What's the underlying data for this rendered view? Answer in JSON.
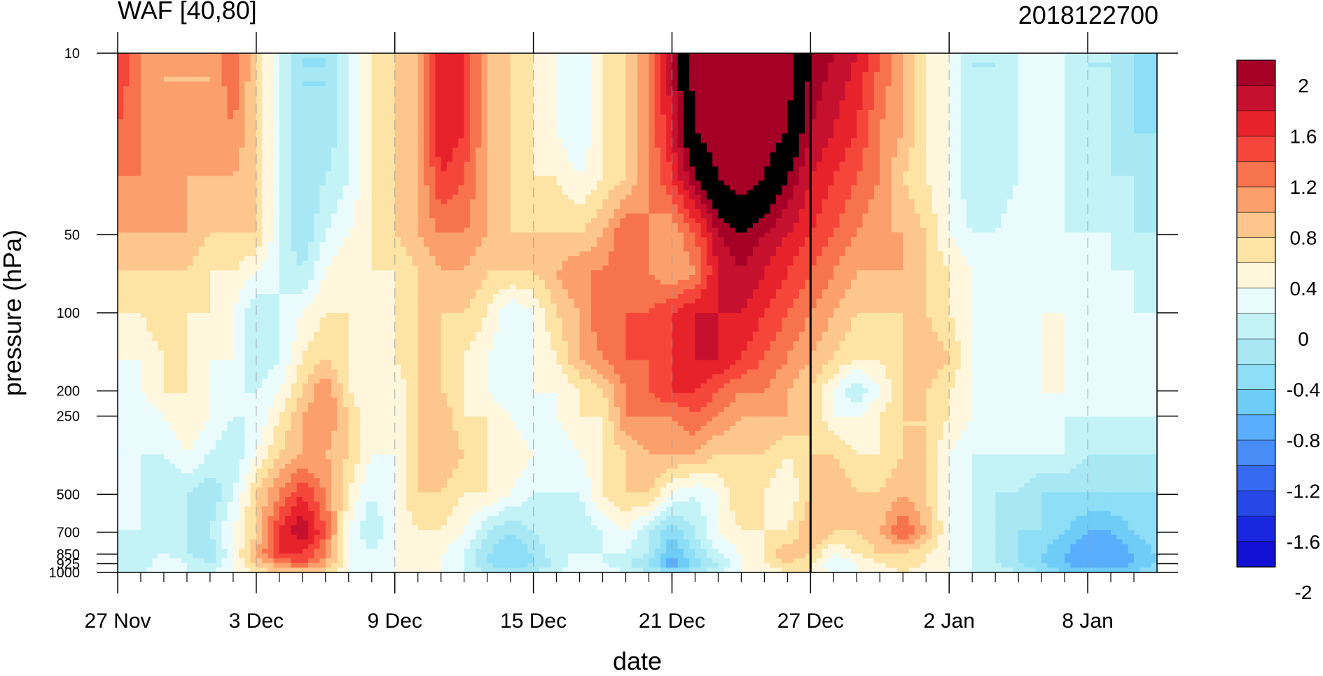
{
  "chart_data": {
    "type": "heatmap",
    "subtype": "filled-contour time-pressure cross section",
    "title_left": "WAF [40,80]",
    "title_right": "2018122700",
    "xlabel": "date",
    "ylabel": "pressure (hPa)",
    "x_axis": {
      "type": "date",
      "start": "2018-11-27",
      "end": "2019-01-11",
      "major_ticks": [
        "2018-11-27",
        "2018-12-03",
        "2018-12-09",
        "2018-12-15",
        "2018-12-21",
        "2018-12-27",
        "2019-01-02",
        "2019-01-08"
      ],
      "tick_labels": [
        "27 Nov",
        "3 Dec",
        "9 Dec",
        "15 Dec",
        "21 Dec",
        "27 Dec",
        "2 Jan",
        "8 Jan"
      ],
      "minor_tick_step_days": 1
    },
    "y_axis": {
      "scale": "log",
      "reversed": true,
      "range": [
        1000,
        10
      ],
      "ticks": [
        10,
        50,
        100,
        200,
        250,
        500,
        700,
        850,
        925,
        1000
      ],
      "tick_labels": [
        "10",
        "50",
        "100",
        "200",
        "250",
        "500",
        "700",
        "850",
        "925",
        "1000"
      ]
    },
    "forecast_start_line": "2018-12-27",
    "grid": "dashed vertical lines at major date ticks",
    "colorbar": {
      "placement": "right",
      "levels": [
        -2.2,
        -2,
        -1.8,
        -1.6,
        -1.4,
        -1.2,
        -1,
        -0.8,
        -0.6,
        -0.4,
        -0.2,
        0,
        0.2,
        0.4,
        0.6,
        0.8,
        1,
        1.2,
        1.4,
        1.6,
        1.8,
        2,
        2.2
      ],
      "labels": [
        "2",
        "1.6",
        "1.2",
        "0.8",
        "0.4",
        "0",
        "-0.4",
        "-0.8",
        "-1.2",
        "-1.6",
        "-2"
      ],
      "colors": [
        "#a50026",
        "#c6102f",
        "#e8222b",
        "#f6463b",
        "#f7734e",
        "#fba06d",
        "#fcc68c",
        "#fde3a4",
        "#fff7dd",
        "#e9fbfd",
        "#c4f3f7",
        "#a8e8f5",
        "#8ddef6",
        "#6fccf7",
        "#5aaefc",
        "#488cf5",
        "#3569ef",
        "#2548e7",
        "#1a27e0",
        "#1210d3"
      ]
    },
    "series": [
      {
        "p": 10,
        "values": [
          1.2,
          0.8,
          0.6,
          0.6,
          0.6,
          1.0,
          0.4,
          -0.2,
          -0.6,
          -0.6,
          -0.2,
          0.2,
          0.4,
          0.6,
          1.4,
          1.2,
          0.6,
          0.4,
          0.2,
          0.0,
          -0.2,
          0.2,
          0.4,
          0.8,
          1.6,
          2.4,
          2.4,
          2.4,
          2.4,
          2.4,
          1.8,
          1.6,
          1.4,
          1.0,
          0.6,
          0.2,
          0.0,
          -0.4,
          -0.4,
          -0.2,
          0.0,
          -0.2,
          -0.4,
          -0.4,
          -0.6,
          -0.8
        ]
      },
      {
        "p": 20,
        "values": [
          1.0,
          0.8,
          0.6,
          0.6,
          0.6,
          0.8,
          0.4,
          -0.2,
          -0.6,
          -0.6,
          -0.2,
          0.2,
          0.4,
          0.6,
          1.4,
          1.2,
          0.6,
          0.4,
          0.2,
          0.0,
          -0.2,
          0.2,
          0.4,
          0.8,
          1.4,
          2.2,
          2.4,
          2.4,
          2.4,
          2.2,
          1.6,
          1.4,
          1.2,
          0.8,
          0.6,
          0.2,
          0.0,
          -0.4,
          -0.4,
          -0.2,
          0.0,
          -0.2,
          -0.4,
          -0.4,
          -0.6,
          -0.6
        ]
      },
      {
        "p": 30,
        "values": [
          0.8,
          0.8,
          0.6,
          0.6,
          0.6,
          0.6,
          0.4,
          -0.2,
          -0.6,
          -0.4,
          -0.2,
          0.2,
          0.4,
          0.6,
          1.2,
          1.0,
          0.6,
          0.4,
          0.2,
          0.2,
          0.0,
          0.2,
          0.4,
          0.8,
          1.2,
          1.8,
          2.2,
          2.4,
          2.2,
          1.8,
          1.4,
          1.2,
          1.0,
          0.8,
          0.4,
          0.2,
          0.0,
          -0.4,
          -0.4,
          -0.2,
          0.0,
          -0.2,
          -0.4,
          -0.4,
          -0.4,
          -0.6
        ]
      },
      {
        "p": 50,
        "values": [
          0.6,
          0.6,
          0.6,
          0.6,
          0.4,
          0.4,
          0.4,
          -0.2,
          -0.6,
          -0.2,
          0.0,
          0.2,
          0.4,
          0.6,
          0.8,
          0.8,
          0.6,
          0.4,
          0.4,
          0.4,
          0.4,
          0.6,
          1.0,
          0.8,
          0.6,
          1.0,
          1.6,
          1.8,
          1.6,
          1.4,
          1.2,
          1.0,
          0.8,
          0.6,
          0.6,
          0.4,
          0.0,
          -0.2,
          -0.2,
          0.0,
          0.0,
          -0.2,
          -0.2,
          -0.2,
          -0.4,
          -0.4
        ]
      },
      {
        "p": 70,
        "values": [
          0.4,
          0.4,
          0.4,
          0.4,
          0.2,
          0.2,
          0.0,
          -0.2,
          -0.4,
          0.0,
          0.2,
          0.2,
          0.2,
          0.4,
          0.6,
          0.6,
          0.4,
          0.4,
          0.4,
          0.6,
          0.8,
          0.8,
          1.0,
          0.8,
          0.6,
          0.8,
          1.4,
          1.6,
          1.4,
          1.2,
          1.0,
          0.8,
          0.6,
          0.6,
          0.6,
          0.4,
          0.2,
          0.0,
          -0.2,
          -0.2,
          0.0,
          -0.2,
          -0.2,
          -0.2,
          -0.2,
          -0.4
        ]
      },
      {
        "p": 100,
        "values": [
          0.2,
          0.2,
          0.4,
          0.2,
          0.2,
          0.0,
          -0.4,
          -0.2,
          0.0,
          0.2,
          0.2,
          0.0,
          0.2,
          0.4,
          0.4,
          0.4,
          0.2,
          -0.2,
          0.0,
          0.4,
          0.6,
          1.0,
          1.0,
          1.0,
          1.2,
          1.4,
          1.4,
          1.4,
          1.2,
          1.0,
          0.8,
          0.6,
          0.4,
          0.4,
          0.4,
          0.4,
          0.2,
          0.0,
          -0.2,
          -0.2,
          0.0,
          0.0,
          -0.2,
          -0.2,
          -0.2,
          -0.2
        ]
      },
      {
        "p": 150,
        "values": [
          0.0,
          0.0,
          0.2,
          0.2,
          0.0,
          0.0,
          -0.4,
          -0.2,
          0.2,
          0.4,
          0.2,
          0.0,
          0.2,
          0.4,
          0.4,
          0.2,
          0.0,
          -0.2,
          0.0,
          0.2,
          0.6,
          0.8,
          1.0,
          1.0,
          1.2,
          1.4,
          1.4,
          1.2,
          1.0,
          0.8,
          0.6,
          0.4,
          0.2,
          0.2,
          0.4,
          0.6,
          0.4,
          0.0,
          -0.2,
          -0.2,
          0.0,
          0.0,
          -0.2,
          -0.2,
          -0.2,
          -0.2
        ]
      },
      {
        "p": 200,
        "values": [
          -0.2,
          0.0,
          0.2,
          0.2,
          0.0,
          -0.2,
          -0.2,
          0.0,
          0.4,
          0.8,
          0.2,
          0.0,
          0.0,
          0.4,
          0.4,
          0.2,
          0.0,
          -0.2,
          0.0,
          0.0,
          0.2,
          0.4,
          0.8,
          1.0,
          1.2,
          1.2,
          1.0,
          0.8,
          0.8,
          0.6,
          0.4,
          0.0,
          -0.4,
          0.0,
          0.4,
          0.4,
          0.2,
          0.0,
          -0.2,
          -0.2,
          0.0,
          0.0,
          -0.2,
          -0.2,
          -0.2,
          -0.2
        ]
      },
      {
        "p": 250,
        "values": [
          -0.2,
          -0.2,
          0.0,
          0.2,
          0.0,
          -0.2,
          -0.2,
          0.2,
          0.6,
          0.8,
          0.4,
          0.0,
          0.0,
          0.4,
          0.6,
          0.2,
          0.2,
          0.0,
          -0.2,
          0.0,
          0.2,
          0.2,
          0.8,
          0.8,
          0.8,
          1.0,
          0.8,
          0.6,
          0.6,
          0.6,
          0.4,
          0.0,
          0.0,
          0.2,
          0.4,
          0.4,
          0.2,
          0.0,
          -0.2,
          -0.2,
          -0.2,
          -0.2,
          -0.2,
          -0.2,
          -0.2,
          -0.2
        ]
      },
      {
        "p": 350,
        "values": [
          -0.2,
          -0.2,
          -0.2,
          0.0,
          -0.2,
          -0.4,
          0.0,
          0.4,
          0.6,
          0.6,
          0.4,
          0.0,
          0.0,
          0.4,
          0.6,
          0.4,
          0.2,
          0.2,
          0.0,
          -0.2,
          0.0,
          0.2,
          0.4,
          0.6,
          0.6,
          0.6,
          0.4,
          0.4,
          0.4,
          0.2,
          0.4,
          0.4,
          0.2,
          0.2,
          0.4,
          0.4,
          0.0,
          -0.2,
          -0.2,
          -0.2,
          -0.2,
          -0.2,
          -0.4,
          -0.4,
          -0.4,
          -0.4
        ]
      },
      {
        "p": 500,
        "values": [
          0.0,
          -0.2,
          -0.4,
          -0.4,
          -0.6,
          -0.2,
          0.4,
          0.8,
          1.2,
          0.8,
          0.2,
          -0.2,
          0.0,
          0.4,
          0.4,
          0.2,
          0.2,
          0.0,
          -0.2,
          -0.2,
          -0.2,
          0.2,
          0.4,
          0.4,
          0.0,
          -0.2,
          0.0,
          0.4,
          0.2,
          0.0,
          0.4,
          0.6,
          0.4,
          0.4,
          0.6,
          0.4,
          0.0,
          -0.2,
          -0.4,
          -0.4,
          -0.6,
          -0.6,
          -0.6,
          -0.6,
          -0.6,
          -0.6
        ]
      },
      {
        "p": 700,
        "values": [
          -0.2,
          -0.2,
          -0.4,
          -0.4,
          -0.4,
          0.0,
          0.4,
          1.2,
          1.6,
          1.0,
          0.0,
          -0.4,
          0.0,
          0.2,
          0.2,
          0.0,
          -0.4,
          -0.6,
          -0.4,
          -0.2,
          -0.4,
          -0.2,
          0.0,
          -0.4,
          -0.8,
          -0.4,
          0.0,
          0.2,
          0.2,
          0.2,
          0.6,
          0.4,
          0.4,
          0.6,
          1.0,
          0.6,
          0.0,
          -0.2,
          -0.4,
          -0.6,
          -0.6,
          -0.8,
          -1.0,
          -1.0,
          -0.8,
          -0.6
        ]
      },
      {
        "p": 850,
        "values": [
          -0.2,
          -0.4,
          -0.2,
          -0.4,
          -0.6,
          0.0,
          0.6,
          1.2,
          1.2,
          0.8,
          0.0,
          -0.2,
          0.0,
          0.2,
          0.0,
          -0.2,
          -0.6,
          -0.8,
          -0.6,
          -0.2,
          -0.2,
          -0.2,
          -0.2,
          -0.4,
          -1.0,
          -0.6,
          -0.2,
          0.0,
          0.2,
          0.6,
          0.4,
          0.0,
          0.2,
          0.4,
          0.4,
          0.2,
          0.0,
          -0.2,
          -0.4,
          -0.6,
          -0.8,
          -1.0,
          -1.2,
          -1.2,
          -1.0,
          -0.8
        ]
      },
      {
        "p": 925,
        "values": [
          -0.4,
          -0.4,
          0.0,
          -0.2,
          -0.4,
          0.0,
          0.4,
          0.8,
          1.0,
          0.6,
          0.0,
          -0.2,
          0.0,
          0.0,
          0.0,
          -0.2,
          -0.6,
          -0.8,
          -0.6,
          -0.4,
          0.0,
          -0.2,
          -0.4,
          -0.6,
          -1.2,
          -0.8,
          -0.4,
          0.0,
          0.2,
          0.4,
          0.2,
          -0.2,
          0.0,
          0.2,
          0.4,
          0.2,
          0.0,
          -0.2,
          -0.4,
          -0.6,
          -0.8,
          -1.0,
          -1.2,
          -1.2,
          -1.0,
          -0.8
        ]
      },
      {
        "p": 1000,
        "values": [
          -0.2,
          -0.2,
          0.0,
          -0.2,
          -0.2,
          0.0,
          0.2,
          0.4,
          0.4,
          0.4,
          0.0,
          0.0,
          0.0,
          0.0,
          0.0,
          -0.2,
          -0.4,
          -0.4,
          -0.4,
          -0.2,
          0.0,
          0.0,
          -0.2,
          -0.4,
          -0.6,
          -0.4,
          -0.2,
          0.0,
          0.0,
          0.2,
          0.2,
          0.0,
          0.0,
          0.0,
          0.2,
          0.0,
          0.0,
          -0.2,
          -0.2,
          -0.4,
          -0.6,
          -0.8,
          -0.8,
          -0.8,
          -0.8,
          -0.6
        ]
      }
    ]
  }
}
